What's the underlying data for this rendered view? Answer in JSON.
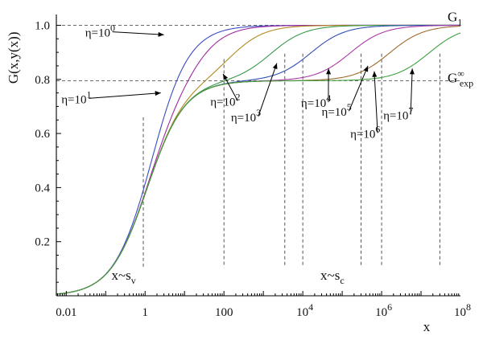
{
  "chart_data": {
    "type": "line",
    "title": "",
    "xlabel": "x",
    "ylabel": "G(x,y(x))",
    "x_scale": "log",
    "xlim": [
      0.0056,
      100000000.0
    ],
    "ylim": [
      0,
      1.04
    ],
    "x_ticks": [
      {
        "value": 0.01,
        "label": "0.01",
        "exp": ""
      },
      {
        "value": 1,
        "label": "1",
        "exp": ""
      },
      {
        "value": 100,
        "label": "100",
        "exp": ""
      },
      {
        "value": 10000,
        "label": "10",
        "exp": "4"
      },
      {
        "value": 1000000,
        "label": "10",
        "exp": "6"
      },
      {
        "value": 100000000,
        "label": "10",
        "exp": "8"
      }
    ],
    "y_ticks": [
      {
        "value": 0.2,
        "label": "0.2"
      },
      {
        "value": 0.4,
        "label": "0.4"
      },
      {
        "value": 0.6,
        "label": "0.6"
      },
      {
        "value": 0.8,
        "label": "0.8"
      },
      {
        "value": 1.0,
        "label": "1.0"
      }
    ],
    "reference_lines": [
      {
        "y": 1.0,
        "label": "G",
        "sub": "1",
        "sup": ""
      },
      {
        "y": 0.795,
        "label": "G",
        "sub": "exp",
        "sup": "∞"
      }
    ],
    "series": [
      {
        "eta": 1,
        "color": "#3b4cc0",
        "label": "η=10",
        "exp": "0",
        "label_x": 0.03,
        "label_y": 0.958,
        "arrow_to": [
          3.0,
          0.965
        ]
      },
      {
        "eta": 10,
        "color": "#a02ca0",
        "label": "η=10",
        "exp": "1",
        "label_x": 0.0075,
        "label_y": 0.712,
        "arrow_to": [
          2.5,
          0.75
        ]
      },
      {
        "eta": 100,
        "color": "#b08a1e",
        "label": "η=10",
        "exp": "2",
        "label_x": 45,
        "label_y": 0.703,
        "arrow_to": [
          95,
          0.82
        ]
      },
      {
        "eta": 1000,
        "color": "#3a9a4c",
        "label": "η=10",
        "exp": "3",
        "label_x": 150,
        "label_y": 0.645,
        "arrow_to": [
          2200,
          0.86
        ]
      },
      {
        "eta": 10000,
        "color": "#3050b0",
        "label": "η=10",
        "exp": "4",
        "label_x": 9000,
        "label_y": 0.698,
        "arrow_to": [
          45000,
          0.84
        ]
      },
      {
        "eta": 100000,
        "color": "#a83ca8",
        "label": "η=10",
        "exp": "5",
        "label_x": 30000,
        "label_y": 0.665,
        "arrow_to": [
          450000,
          0.85
        ]
      },
      {
        "eta": 1000000,
        "color": "#a06a30",
        "label": "η=10",
        "exp": "6",
        "label_x": 160000,
        "label_y": 0.584,
        "arrow_to": [
          650000,
          0.83
        ]
      },
      {
        "eta": 10000000,
        "color": "#40a040",
        "label": "η=10",
        "exp": "7",
        "label_x": 1100000,
        "label_y": 0.652,
        "arrow_to": [
          6000000,
          0.84
        ]
      }
    ],
    "vertical_markers": [
      {
        "x": 0.9,
        "y_top": 0.66
      },
      {
        "x": 100,
        "y_top": 0.875
      },
      {
        "x": 3500,
        "y_top": 0.895
      },
      {
        "x": 10000,
        "y_top": 0.895
      },
      {
        "x": 300000,
        "y_top": 0.895
      },
      {
        "x": 1000000,
        "y_top": 0.895
      },
      {
        "x": 30000000,
        "y_top": 0.895
      }
    ],
    "marker_bottom_y": 0.105,
    "annotations": [
      {
        "text": "x~s",
        "sub": "v",
        "x": 0.14,
        "y": 0.06
      },
      {
        "text": "x~s",
        "sub": "c",
        "x": 28000,
        "y": 0.06
      }
    ]
  }
}
